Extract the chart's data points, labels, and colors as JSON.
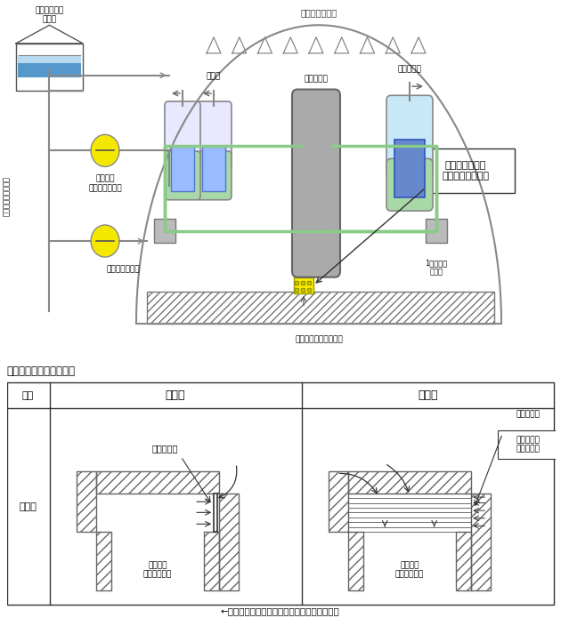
{
  "bg_color": "#ffffff",
  "containment_label": "原子炉格納容器",
  "reactor_vessel_label": "原子炉容器",
  "pressurizer_label": "加圧器",
  "steam_gen_label": "蒸気発生器",
  "primary_pump_label": "1次冷却材\nポンプ",
  "spray_pump_label": "格納容器\nスプレイポンプ",
  "heat_removal_label": "余熱除去ポンプ",
  "fuel_tank_label": "燃料取替用水\nタンク",
  "ecc_label": "非常用炉心冷却系統",
  "sump_label": "格納容器再循環サンプ",
  "screen_callout_label": "格納容器再循環\nサンプスクリーン",
  "comparison_title": "スクリーン取替前後比較",
  "col1_label": "項目",
  "col2_label": "取替前",
  "col3_label": "取替後",
  "row1_label": "概念図",
  "before_screen_label": "スクリーン",
  "before_sump_label": "格納容器\n再循環サンプ",
  "after_screen_label": "スクリーン\n面積の拡大",
  "after_sump_label": "格納容器\n再循環サンプ",
  "flow_label": "←：格納容器再循環サンプへ流入する水の流れ"
}
